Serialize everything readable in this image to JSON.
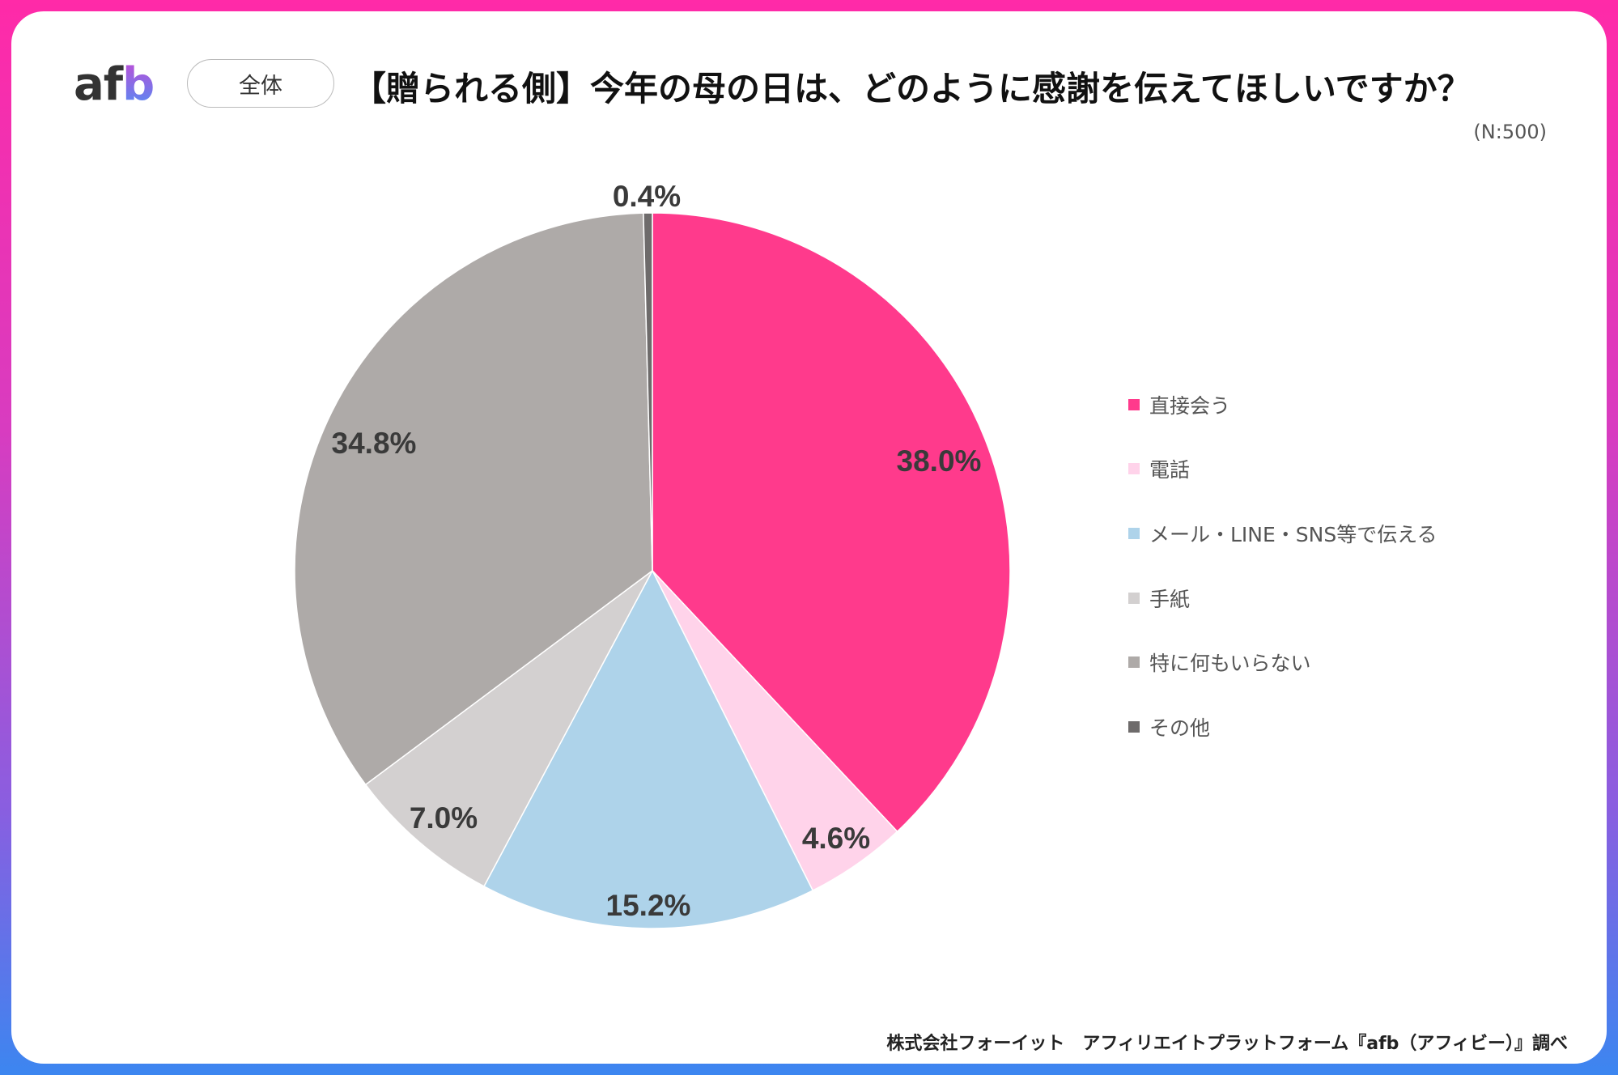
{
  "header": {
    "logo": "afb",
    "segment_pill": "全体",
    "title": "【贈られる側】今年の母の日は、どのように感謝を伝えてほしいですか？",
    "sample_size": "(N:500)"
  },
  "footer": {
    "source": "株式会社フォーイット　アフィリエイトプラットフォーム『afb（アフィビー）』調べ"
  },
  "chart_data": {
    "type": "pie",
    "title": "【贈られる側】今年の母の日は、どのように感謝を伝えてほしいですか？",
    "categories": [
      "直接会う",
      "電話",
      "メール・LINE・SNS等で伝える",
      "手紙",
      "特に何もいらない",
      "その他"
    ],
    "values": [
      38.0,
      4.6,
      15.2,
      7.0,
      34.8,
      0.4
    ],
    "labels": [
      "38.0%",
      "4.6%",
      "15.2%",
      "7.0%",
      "34.8%",
      "0.4%"
    ],
    "colors": [
      "#FF3A8C",
      "#FFD3EA",
      "#AED3EA",
      "#D3D0D0",
      "#AEAAA8",
      "#6E6B6B"
    ],
    "start": "top",
    "direction": "clockwise",
    "legend": "right",
    "unit": "%"
  }
}
